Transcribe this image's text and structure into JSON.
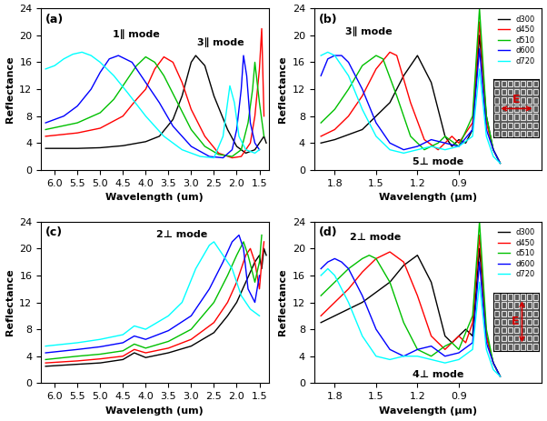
{
  "chart_data": [
    {
      "type": "line",
      "panel": "(a)",
      "xlabel": "Wavelength (um)",
      "ylabel": "Reflectance",
      "xlim": [
        6.3,
        1.3
      ],
      "xticks": [
        6.0,
        5.5,
        5.0,
        4.5,
        4.0,
        3.5,
        3.0,
        2.5,
        2.0,
        1.5
      ],
      "ylim": [
        0,
        24
      ],
      "yticks": [
        0,
        4,
        8,
        12,
        16,
        20,
        24
      ],
      "annotations": [
        "1∥ mode",
        "3∥ mode"
      ],
      "series": [
        {
          "color": "#000000",
          "x": [
            6.2,
            5.5,
            5.0,
            4.5,
            4.0,
            3.7,
            3.4,
            3.2,
            3.0,
            2.9,
            2.7,
            2.5,
            2.2,
            2.0,
            1.8,
            1.6,
            1.5,
            1.4,
            1.35
          ],
          "values": [
            3.2,
            3.2,
            3.3,
            3.6,
            4.2,
            5.0,
            7.5,
            11,
            16,
            17,
            15.5,
            11,
            6,
            3.5,
            2.5,
            3,
            4,
            5,
            4
          ]
        },
        {
          "color": "#ff0000",
          "x": [
            6.2,
            5.5,
            5.0,
            4.5,
            4.2,
            4.0,
            3.8,
            3.6,
            3.4,
            3.2,
            3.0,
            2.7,
            2.4,
            2.1,
            1.9,
            1.7,
            1.6,
            1.5,
            1.45,
            1.4
          ],
          "values": [
            5,
            5.5,
            6.2,
            8,
            10.5,
            12,
            15,
            16.8,
            16,
            13,
            9,
            5,
            2.5,
            1.8,
            2,
            4,
            8,
            15,
            21,
            8
          ]
        },
        {
          "color": "#00c000",
          "x": [
            6.2,
            5.5,
            5.0,
            4.7,
            4.4,
            4.2,
            4.0,
            3.8,
            3.6,
            3.3,
            3.0,
            2.7,
            2.4,
            2.1,
            1.9,
            1.75,
            1.65,
            1.6,
            1.5,
            1.4
          ],
          "values": [
            6,
            7,
            8.5,
            10.5,
            13.5,
            15.5,
            16.8,
            16,
            14,
            10,
            6,
            3.5,
            2.3,
            2,
            3,
            7,
            12,
            16,
            10,
            5
          ]
        },
        {
          "color": "#0000ff",
          "x": [
            6.2,
            5.8,
            5.5,
            5.2,
            5.0,
            4.8,
            4.6,
            4.3,
            4.0,
            3.7,
            3.4,
            3.0,
            2.6,
            2.3,
            2.1,
            2.0,
            1.9,
            1.85,
            1.78,
            1.7,
            1.6,
            1.5
          ],
          "values": [
            7,
            8,
            9.5,
            12,
            14.5,
            16.5,
            17,
            16,
            13,
            10,
            6.5,
            3.5,
            2,
            1.8,
            3,
            6,
            12,
            17,
            14,
            7,
            4,
            3
          ]
        },
        {
          "color": "#00ffff",
          "x": [
            6.2,
            6.0,
            5.8,
            5.6,
            5.4,
            5.2,
            5.0,
            4.7,
            4.4,
            4.0,
            3.6,
            3.2,
            2.8,
            2.5,
            2.3,
            2.2,
            2.15,
            2.05,
            1.95,
            1.8,
            1.6,
            1.5
          ],
          "values": [
            15,
            15.5,
            16.5,
            17.2,
            17.5,
            17,
            16,
            14,
            11.5,
            8,
            5,
            3,
            2,
            1.8,
            5,
            10,
            12.5,
            10,
            5,
            3,
            2.5,
            3
          ]
        }
      ]
    },
    {
      "type": "line",
      "panel": "(b)",
      "xlabel": "Wavelength (μm)",
      "ylabel": "Reflectance",
      "xlim": [
        1.95,
        0.3
      ],
      "xticks": [
        1.8,
        1.5,
        1.2,
        0.9
      ],
      "ylim": [
        0,
        24
      ],
      "yticks": [
        0,
        4,
        8,
        12,
        16,
        20,
        24
      ],
      "annotations": [
        "3∥ mode",
        "5⊥ mode",
        "E"
      ],
      "legend": "upper right",
      "series": [
        {
          "name": "d300",
          "color": "#000000",
          "x": [
            1.9,
            1.8,
            1.6,
            1.4,
            1.3,
            1.2,
            1.1,
            1.0,
            0.95,
            0.9,
            0.85,
            0.8,
            0.75,
            0.7,
            0.65,
            0.6
          ],
          "values": [
            4,
            4.5,
            6,
            10,
            14,
            17,
            13,
            5,
            3.5,
            4.5,
            4,
            6,
            20,
            8,
            3,
            1
          ]
        },
        {
          "name": "d450",
          "color": "#ff0000",
          "x": [
            1.9,
            1.8,
            1.7,
            1.6,
            1.5,
            1.4,
            1.35,
            1.25,
            1.15,
            1.05,
            1.0,
            0.95,
            0.9,
            0.8,
            0.75,
            0.7,
            0.65,
            0.6
          ],
          "values": [
            5,
            6,
            8,
            11,
            15,
            17.5,
            17,
            10,
            4.5,
            3,
            4,
            5,
            4,
            7,
            22,
            7,
            3,
            1
          ]
        },
        {
          "name": "d510",
          "color": "#00c000",
          "x": [
            1.9,
            1.8,
            1.7,
            1.6,
            1.5,
            1.45,
            1.35,
            1.25,
            1.15,
            1.05,
            1.0,
            0.9,
            0.8,
            0.75,
            0.7,
            0.65,
            0.6
          ],
          "values": [
            7,
            9,
            12,
            15.5,
            17,
            16.5,
            11,
            5,
            3,
            4,
            5,
            3.5,
            8,
            24,
            8,
            3,
            1
          ]
        },
        {
          "name": "d600",
          "color": "#0000ff",
          "x": [
            1.9,
            1.85,
            1.8,
            1.75,
            1.7,
            1.6,
            1.5,
            1.4,
            1.3,
            1.2,
            1.1,
            1.0,
            0.9,
            0.8,
            0.75,
            0.7,
            0.65,
            0.6
          ],
          "values": [
            14,
            16.5,
            17,
            17,
            16,
            12,
            7,
            4,
            3,
            3.5,
            4.5,
            4,
            3.5,
            6,
            18,
            6,
            3,
            1
          ]
        },
        {
          "name": "d720",
          "color": "#00ffff",
          "x": [
            1.9,
            1.85,
            1.8,
            1.7,
            1.6,
            1.5,
            1.4,
            1.3,
            1.2,
            1.1,
            1.0,
            0.9,
            0.8,
            0.75,
            0.7,
            0.65,
            0.6
          ],
          "values": [
            17,
            17.5,
            17,
            14,
            9,
            5,
            3,
            2.5,
            3,
            3.5,
            3,
            3.5,
            5,
            15,
            5,
            2,
            1
          ]
        }
      ]
    },
    {
      "type": "line",
      "panel": "(c)",
      "xlabel": "Wavelength (um)",
      "ylabel": "Reflectance",
      "xlim": [
        6.3,
        1.3
      ],
      "xticks": [
        6.0,
        5.5,
        5.0,
        4.5,
        4.0,
        3.5,
        3.0,
        2.5,
        2.0,
        1.5
      ],
      "ylim": [
        0,
        24
      ],
      "yticks": [
        0,
        4,
        8,
        12,
        16,
        20,
        24
      ],
      "annotations": [
        "2⊥ mode"
      ],
      "series": [
        {
          "color": "#000000",
          "x": [
            6.2,
            5.5,
            5.0,
            4.5,
            4.25,
            4.0,
            3.5,
            3.0,
            2.5,
            2.2,
            2.0,
            1.8,
            1.6,
            1.5,
            1.45,
            1.4,
            1.35
          ],
          "values": [
            2.5,
            2.8,
            3,
            3.5,
            4.5,
            3.8,
            4.5,
            5.5,
            7.5,
            10,
            12,
            15,
            18,
            19,
            17,
            20,
            19
          ]
        },
        {
          "color": "#ff0000",
          "x": [
            6.2,
            5.5,
            5.0,
            4.5,
            4.25,
            4.0,
            3.5,
            3.0,
            2.5,
            2.2,
            2.0,
            1.8,
            1.7,
            1.6,
            1.5,
            1.45,
            1.4
          ],
          "values": [
            3,
            3.3,
            3.6,
            4,
            5,
            4.5,
            5.2,
            6.5,
            9,
            12,
            15,
            19,
            20,
            18,
            14,
            18,
            21
          ]
        },
        {
          "color": "#00c000",
          "x": [
            6.2,
            5.5,
            5.0,
            4.5,
            4.25,
            4.0,
            3.5,
            3.0,
            2.5,
            2.2,
            2.0,
            1.85,
            1.75,
            1.6,
            1.5,
            1.45
          ],
          "values": [
            3.5,
            4,
            4.3,
            4.8,
            5.8,
            5.2,
            6.2,
            8,
            12,
            16,
            19,
            21,
            19,
            15,
            18,
            22
          ]
        },
        {
          "color": "#0000ff",
          "x": [
            6.2,
            5.5,
            5.0,
            4.5,
            4.25,
            4.0,
            3.5,
            3.0,
            2.6,
            2.3,
            2.1,
            1.95,
            1.85,
            1.75,
            1.6,
            1.5
          ],
          "values": [
            4.5,
            5,
            5.4,
            6,
            7,
            6.5,
            7.8,
            10,
            14,
            18,
            21,
            22,
            20,
            14,
            12,
            16
          ]
        },
        {
          "color": "#00ffff",
          "x": [
            6.2,
            5.5,
            5.0,
            4.5,
            4.25,
            4.0,
            3.5,
            3.2,
            2.9,
            2.6,
            2.5,
            2.3,
            2.1,
            1.9,
            1.7,
            1.5
          ],
          "values": [
            5.5,
            6,
            6.5,
            7.2,
            8.5,
            8,
            10,
            12,
            17,
            20.5,
            21,
            19,
            17,
            13,
            11,
            10
          ]
        }
      ]
    },
    {
      "type": "line",
      "panel": "(d)",
      "xlabel": "Wavelength (μm)",
      "ylabel": "Reflectance",
      "xlim": [
        1.95,
        0.3
      ],
      "xticks": [
        1.8,
        1.5,
        1.2,
        0.9
      ],
      "ylim": [
        0,
        24
      ],
      "yticks": [
        0,
        4,
        8,
        12,
        16,
        20,
        24
      ],
      "annotations": [
        "2⊥ mode",
        "4⊥ mode",
        "E"
      ],
      "legend": "upper right",
      "series": [
        {
          "name": "d300",
          "color": "#000000",
          "x": [
            1.9,
            1.8,
            1.6,
            1.4,
            1.3,
            1.2,
            1.1,
            1.0,
            0.95,
            0.9,
            0.85,
            0.8,
            0.75,
            0.7,
            0.65,
            0.6
          ],
          "values": [
            9,
            10,
            12,
            15,
            17.5,
            19,
            15,
            7,
            6,
            7,
            8,
            7,
            20,
            7,
            3,
            1
          ]
        },
        {
          "name": "d450",
          "color": "#ff0000",
          "x": [
            1.9,
            1.8,
            1.7,
            1.6,
            1.5,
            1.4,
            1.3,
            1.2,
            1.1,
            1.0,
            0.95,
            0.9,
            0.85,
            0.8,
            0.75,
            0.7,
            0.65,
            0.6
          ],
          "values": [
            10,
            12,
            14,
            16.5,
            18.5,
            19.5,
            18,
            13,
            7,
            5,
            6,
            7,
            6,
            9,
            22,
            7,
            3,
            1
          ]
        },
        {
          "name": "d510",
          "color": "#00c000",
          "x": [
            1.9,
            1.8,
            1.7,
            1.6,
            1.55,
            1.5,
            1.4,
            1.3,
            1.2,
            1.1,
            1.0,
            0.95,
            0.9,
            0.8,
            0.75,
            0.7,
            0.65,
            0.6
          ],
          "values": [
            13,
            15,
            17,
            18.5,
            19,
            18.5,
            15,
            9,
            5,
            4,
            5.5,
            6,
            5,
            10,
            24,
            8,
            3,
            1
          ]
        },
        {
          "name": "d600",
          "color": "#0000ff",
          "x": [
            1.9,
            1.85,
            1.8,
            1.75,
            1.7,
            1.6,
            1.5,
            1.4,
            1.3,
            1.2,
            1.1,
            1.0,
            0.9,
            0.8,
            0.75,
            0.7,
            0.65,
            0.6
          ],
          "values": [
            17,
            18,
            18.5,
            18,
            17,
            13,
            8,
            5,
            4,
            5,
            5.5,
            4,
            4.5,
            6,
            18,
            6,
            3,
            1
          ]
        },
        {
          "name": "d720",
          "color": "#00ffff",
          "x": [
            1.9,
            1.85,
            1.8,
            1.7,
            1.6,
            1.5,
            1.4,
            1.3,
            1.2,
            1.1,
            1.0,
            0.9,
            0.8,
            0.75,
            0.7,
            0.65,
            0.6
          ],
          "values": [
            16,
            17,
            16,
            12,
            7,
            4,
            3.5,
            4,
            4,
            3.5,
            3,
            3.5,
            5,
            15,
            5,
            2,
            1
          ]
        }
      ]
    }
  ]
}
